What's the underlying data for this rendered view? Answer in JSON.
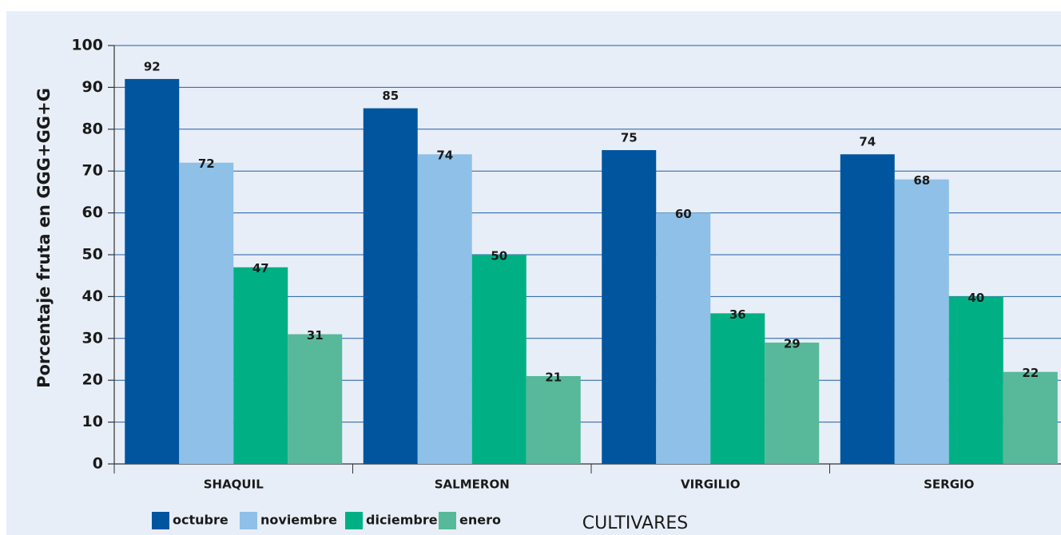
{
  "chart_data": {
    "type": "bar",
    "y_label": "Porcentaje fruta en GGG+GG+G",
    "x_label": "CULTIVARES",
    "categories": [
      "SHAQUIL",
      "SALMERON",
      "VIRGILIO",
      "SERGIO"
    ],
    "series": [
      {
        "name": "octubre",
        "color": "#00559f",
        "values": [
          92,
          85,
          75,
          74
        ]
      },
      {
        "name": "noviembre",
        "color": "#8ec0e8",
        "values": [
          72,
          74,
          60,
          68
        ]
      },
      {
        "name": "diciembre",
        "color": "#00b084",
        "values": [
          47,
          50,
          36,
          40
        ]
      },
      {
        "name": "enero",
        "color": "#57b999",
        "values": [
          31,
          21,
          29,
          22
        ]
      }
    ],
    "ylim": [
      0,
      100
    ],
    "yticks": [
      0,
      10,
      20,
      30,
      40,
      50,
      60,
      70,
      80,
      90,
      100
    ],
    "grid": true
  }
}
